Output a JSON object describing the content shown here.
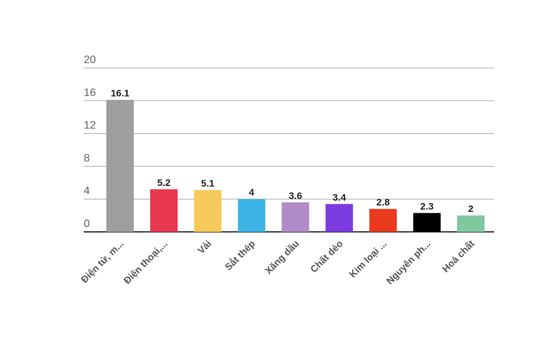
{
  "chart_data": {
    "type": "bar",
    "categories": [
      "Điện tử, m...",
      "Điện thoại,...",
      "Vải",
      "Sắt thép",
      "Xăng dầu",
      "Chất dẻo",
      "Kim loại ...",
      "Nguyên ph...",
      "Hoá chất"
    ],
    "values": [
      16.1,
      5.2,
      5.1,
      4,
      3.6,
      3.4,
      2.8,
      2.3,
      2
    ],
    "colors": [
      "#9e9e9e",
      "#e8384f",
      "#f5c95a",
      "#3cb4e5",
      "#b18ac8",
      "#7b3be0",
      "#ea3a1e",
      "#000000",
      "#7fc8a0"
    ],
    "ylim": [
      0,
      20
    ],
    "yticks": [
      0,
      4,
      8,
      12,
      16,
      20
    ],
    "grid": true
  }
}
